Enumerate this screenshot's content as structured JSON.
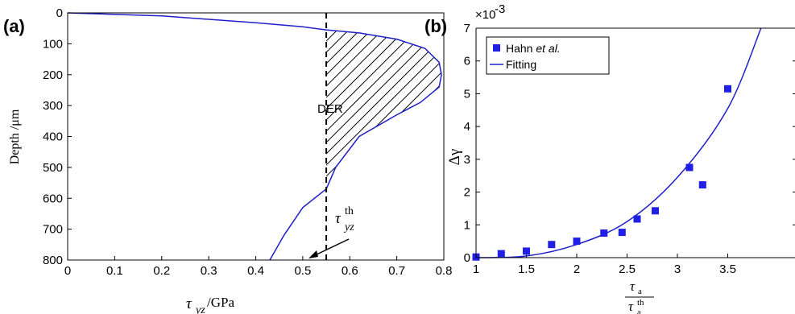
{
  "chart_data": [
    {
      "panel_label": "(a)",
      "type": "line",
      "xlabel_symbol": "τ",
      "xlabel_sub": "yz",
      "xlabel_unit": "/GPa",
      "ylabel": "Depth /μm",
      "xlim": [
        0,
        0.8
      ],
      "ylim": [
        0,
        800
      ],
      "y_inverted": true,
      "x_ticks": [
        "0",
        "0.1",
        "0.2",
        "0.3",
        "0.4",
        "0.5",
        "0.6",
        "0.7",
        "0.8"
      ],
      "y_ticks": [
        "0",
        "100",
        "200",
        "300",
        "400",
        "500",
        "600",
        "700",
        "800"
      ],
      "series": [
        {
          "color": "#1f1fc8",
          "x": [
            0,
            0.2,
            0.4,
            0.5,
            0.55,
            0.62,
            0.7,
            0.76,
            0.79,
            0.795,
            0.79,
            0.77,
            0.75,
            0.7,
            0.62,
            0.57,
            0.55,
            0.5,
            0.46,
            0.43
          ],
          "y": [
            0,
            10,
            32,
            45,
            55,
            65,
            85,
            115,
            160,
            200,
            240,
            265,
            290,
            330,
            400,
            500,
            570,
            630,
            720,
            800
          ]
        }
      ],
      "threshold_x": 0.55,
      "region_label": "DER",
      "annotation_symbol": "τ",
      "annotation_sup": "th",
      "annotation_sub": "yz"
    },
    {
      "panel_label": "(b)",
      "type": "scatter",
      "y_exponent": "×10",
      "y_exponent_power": "-3",
      "xlim": [
        1,
        4
      ],
      "ylim": [
        0,
        7
      ],
      "x_ticks": [
        "1",
        "1.5",
        "2",
        "2.5",
        "3",
        "3.5"
      ],
      "y_ticks": [
        "0",
        "1",
        "2",
        "3",
        "4",
        "5",
        "6",
        "7"
      ],
      "ylabel": "Δγ",
      "xlabel_num": "τ",
      "xlabel_num_sub": "a",
      "xlabel_den": "τ",
      "xlabel_den_sub": "a",
      "xlabel_den_sup": "th",
      "series": [
        {
          "name": "Hahn et al.",
          "legend_italic": "et al.",
          "legend_plain": "Hahn ",
          "marker": "square",
          "color": "#1f1fe6",
          "x": [
            1.0,
            1.25,
            1.5,
            1.75,
            2.0,
            2.27,
            2.45,
            2.6,
            2.78,
            3.12,
            3.25,
            3.5
          ],
          "y": [
            0.02,
            0.12,
            0.2,
            0.4,
            0.5,
            0.75,
            0.77,
            1.18,
            1.43,
            2.75,
            2.22,
            5.15
          ]
        },
        {
          "name": "Fitting",
          "marker": "line",
          "color": "#1f1fc8",
          "x": [
            1.0,
            1.5,
            2.0,
            2.5,
            3.0,
            3.5,
            3.83
          ],
          "y": [
            0.0,
            0.05,
            0.4,
            1.1,
            2.45,
            4.55,
            7.0
          ]
        }
      ]
    }
  ]
}
